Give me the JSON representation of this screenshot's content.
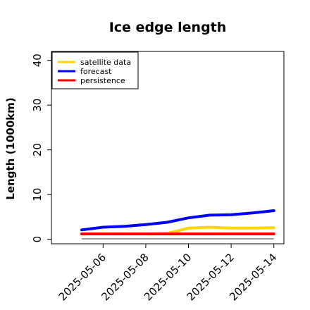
{
  "chart_data": {
    "type": "line",
    "title": "Ice edge length",
    "xlabel": "",
    "ylabel": "Length (1000km)",
    "x": [
      "2025-05-05",
      "2025-05-06",
      "2025-05-07",
      "2025-05-08",
      "2025-05-09",
      "2025-05-10",
      "2025-05-11",
      "2025-05-12",
      "2025-05-13",
      "2025-05-14"
    ],
    "x_ticks": [
      "2025-05-06",
      "2025-05-08",
      "2025-05-10",
      "2025-05-12",
      "2025-05-14"
    ],
    "highlight_tick": "2025-05-06",
    "highlight_color": "#228b22",
    "ylim": [
      -1,
      42
    ],
    "y_ticks": [
      0,
      10,
      20,
      30,
      40
    ],
    "grid": false,
    "legend_position": "top-left",
    "series": [
      {
        "name": "satellite data",
        "color": "#ffd700",
        "values": [
          1.2,
          1.2,
          1.2,
          1.2,
          1.3,
          2.5,
          2.7,
          2.5,
          2.5,
          2.6
        ]
      },
      {
        "name": "forecast",
        "color": "#0000ff",
        "values": [
          2.1,
          2.7,
          2.9,
          3.3,
          3.8,
          4.8,
          5.4,
          5.5,
          5.9,
          6.4
        ]
      },
      {
        "name": "persistence",
        "color": "#ff0000",
        "values": [
          1.2,
          1.2,
          1.2,
          1.2,
          1.2,
          1.2,
          1.2,
          1.2,
          1.2,
          1.2
        ]
      }
    ],
    "baseline": {
      "value": 0.1,
      "color": "#808080"
    }
  }
}
